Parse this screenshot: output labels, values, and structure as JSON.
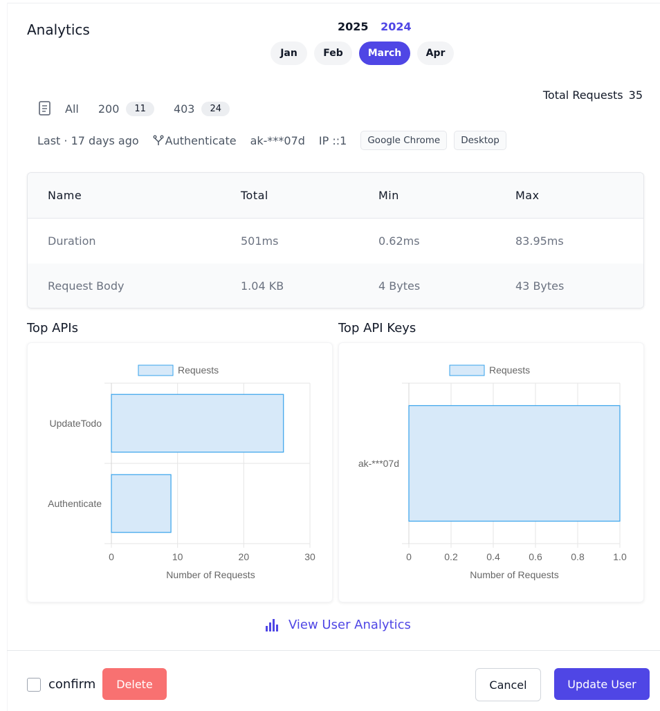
{
  "header": {
    "title": "Analytics",
    "years": [
      "2025",
      "2024"
    ],
    "months": [
      "Jan",
      "Feb",
      "March",
      "Apr"
    ],
    "active_month": "March",
    "total_label": "Total Requests",
    "total_value": "35"
  },
  "filters": {
    "all_label": "All",
    "status": [
      {
        "code": "200",
        "count": "11"
      },
      {
        "code": "403",
        "count": "24"
      }
    ]
  },
  "info": {
    "last": "Last · 17 days ago",
    "operation": "Authenticate",
    "api_key": "ak-***07d",
    "ip": "IP ::1",
    "browser": "Google Chrome",
    "device": "Desktop"
  },
  "stats_table": {
    "headers": [
      "Name",
      "Total",
      "Min",
      "Max"
    ],
    "rows": [
      [
        "Duration",
        "501ms",
        "0.62ms",
        "83.95ms"
      ],
      [
        "Request Body",
        "1.04 KB",
        "4 Bytes",
        "43 Bytes"
      ]
    ]
  },
  "charts": {
    "top_apis_title": "Top APIs",
    "top_api_keys_title": "Top API Keys"
  },
  "chart_data": [
    {
      "type": "bar",
      "orientation": "horizontal",
      "categories": [
        "UpdateTodo",
        "Authenticate"
      ],
      "series": [
        {
          "name": "Requests",
          "values": [
            26,
            9
          ]
        }
      ],
      "xlabel": "Number of Requests",
      "xlim": [
        0,
        30
      ],
      "xticks": [
        0,
        10,
        20,
        30
      ],
      "legend": "top",
      "grid": true,
      "color": "#36a2eb",
      "fill": "#d7e9f9"
    },
    {
      "type": "bar",
      "orientation": "horizontal",
      "categories": [
        "ak-***07d"
      ],
      "series": [
        {
          "name": "Requests",
          "values": [
            1
          ]
        }
      ],
      "xlabel": "Number of Requests",
      "xlim": [
        0,
        1
      ],
      "xticks": [
        "0",
        "0.2",
        "0.4",
        "0.6",
        "0.8",
        "1.0"
      ],
      "legend": "top",
      "grid": true,
      "color": "#36a2eb",
      "fill": "#d7e9f9"
    }
  ],
  "links": {
    "view_user_analytics": "View User Analytics"
  },
  "footer": {
    "confirm_label": "confirm",
    "delete_label": "Delete",
    "cancel_label": "Cancel",
    "update_label": "Update User"
  },
  "icons": {
    "filter_all": "document-list-icon",
    "operation": "branch-icon",
    "view_analytics": "bar-chart-icon"
  }
}
